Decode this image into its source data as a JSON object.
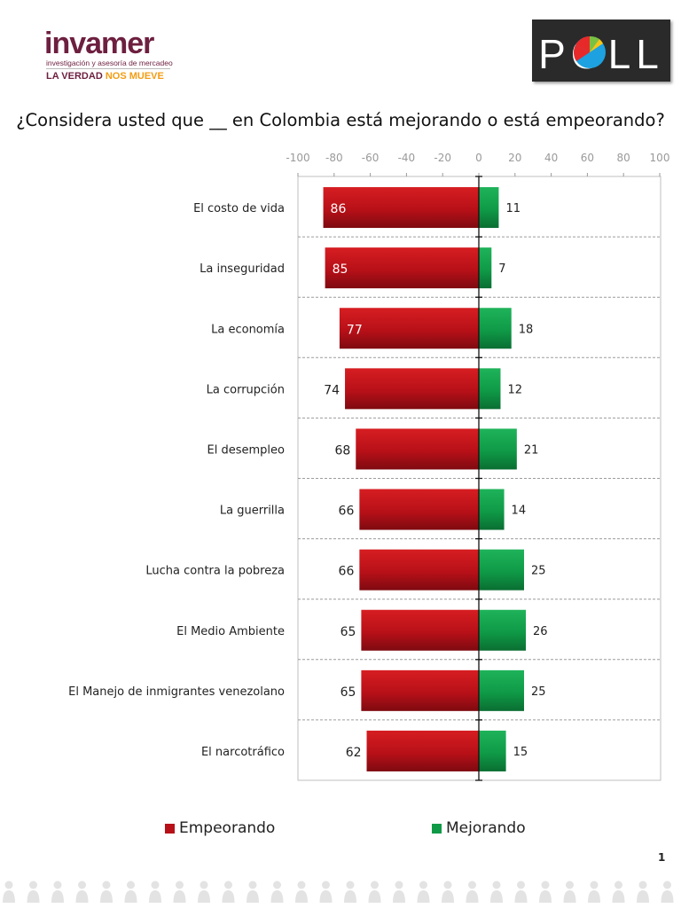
{
  "header": {
    "logo_brand": "invamer",
    "logo_tagline": "investigación y asesoría de mercadeo",
    "logo_slogan_a": "LA VERDAD",
    "logo_slogan_b": "NOS MUEVE",
    "poll_logo_text": "POLL"
  },
  "page_number": "1",
  "colors": {
    "empeorando": "#b81018",
    "mejorando": "#0f9a47",
    "brand": "#6d1f3f",
    "accent": "#f39c12"
  },
  "chart_data": {
    "type": "bar",
    "orientation": "horizontal-diverging",
    "title": "¿Considera usted que __ en Colombia está mejorando o está empeorando?",
    "xlim": [
      -100,
      100
    ],
    "ticks": [
      "-100",
      "-80",
      "-60",
      "-40",
      "-20",
      "0",
      "20",
      "40",
      "60",
      "80",
      "100"
    ],
    "categories": [
      "El costo de vida",
      "La inseguridad",
      "La economía",
      "La corrupción",
      "El desempleo",
      "La guerrilla",
      "Lucha contra la pobreza",
      "El Medio Ambiente",
      "El Manejo de inmigrantes venezolano",
      "El narcotráfico"
    ],
    "series": [
      {
        "name": "Empeorando",
        "values": [
          86,
          85,
          77,
          74,
          68,
          66,
          66,
          65,
          65,
          62
        ]
      },
      {
        "name": "Mejorando",
        "values": [
          11,
          7,
          18,
          12,
          21,
          14,
          25,
          26,
          25,
          15
        ]
      }
    ],
    "legend": "bottom"
  }
}
